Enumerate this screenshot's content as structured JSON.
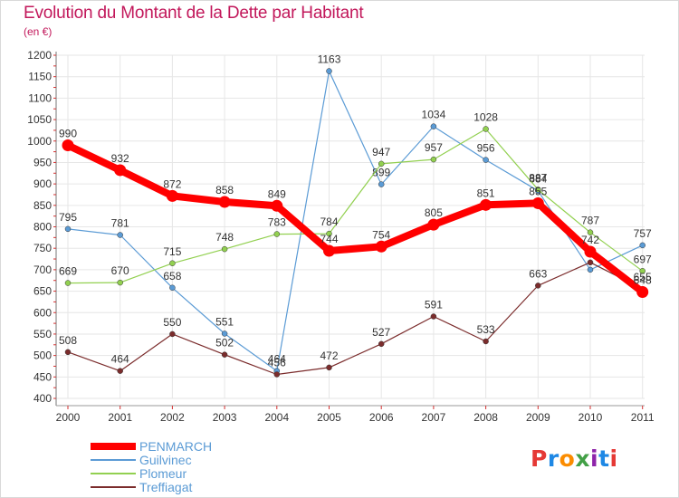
{
  "header": {
    "title": "Evolution du Montant de la Dette par Habitant",
    "subtitle": "(en €)"
  },
  "logo": {
    "text": "Proxiti",
    "colors": [
      "#e53935",
      "#1e88e5",
      "#fb8c00",
      "#43a047",
      "#8e24aa",
      "#1e88e5",
      "#e53935"
    ]
  },
  "chart_data": {
    "type": "line",
    "title": "Evolution du Montant de la Dette par Habitant",
    "subtitle": "(en €)",
    "xlabel": "",
    "ylabel": "",
    "ylim": [
      400,
      1200
    ],
    "yticks": [
      400,
      450,
      500,
      550,
      600,
      650,
      700,
      750,
      800,
      850,
      900,
      950,
      1000,
      1050,
      1100,
      1150,
      1200
    ],
    "categories": [
      "2000",
      "2001",
      "2002",
      "2003",
      "2004",
      "2005",
      "2006",
      "2007",
      "2008",
      "2009",
      "2010",
      "2011"
    ],
    "grid": true,
    "legend_position": "bottom-left",
    "series": [
      {
        "name": "Guilvinec",
        "color": "#5b9bd5",
        "line_width": 1.2,
        "marker": 3,
        "values": [
          795,
          781,
          658,
          551,
          464,
          1163,
          899,
          1034,
          956,
          884,
          700,
          757
        ],
        "labels": [
          "795",
          "781",
          "658",
          "551",
          "464",
          "1163",
          "899",
          "1034",
          "956",
          "884",
          "",
          "757"
        ]
      },
      {
        "name": "Plomeur",
        "color": "#92d050",
        "line_width": 1.2,
        "marker": 3,
        "values": [
          669,
          670,
          715,
          748,
          783,
          784,
          947,
          957,
          1028,
          887,
          787,
          697
        ],
        "labels": [
          "669",
          "670",
          "715",
          "748",
          "783",
          "784",
          "947",
          "957",
          "1028",
          "887",
          "787",
          "697"
        ]
      },
      {
        "name": "Treffiagat",
        "color": "#7b2c2c",
        "line_width": 1.2,
        "marker": 3,
        "values": [
          508,
          464,
          550,
          502,
          456,
          472,
          527,
          591,
          533,
          663,
          717,
          655
        ],
        "labels": [
          "508",
          "464",
          "550",
          "502",
          "456",
          "472",
          "527",
          "591",
          "533",
          "663",
          "",
          "655"
        ]
      },
      {
        "name": "PENMARCH",
        "color": "#ff0000",
        "line_width": 8,
        "marker": 6.5,
        "values": [
          990,
          932,
          872,
          858,
          849,
          744,
          754,
          805,
          851,
          855,
          742,
          648
        ],
        "labels": [
          "990",
          "932",
          "872",
          "858",
          "849",
          "744",
          "754",
          "805",
          "851",
          "855",
          "742",
          "648"
        ]
      }
    ],
    "legend": [
      "PENMARCH",
      "Guilvinec",
      "Plomeur",
      "Treffiagat"
    ]
  }
}
